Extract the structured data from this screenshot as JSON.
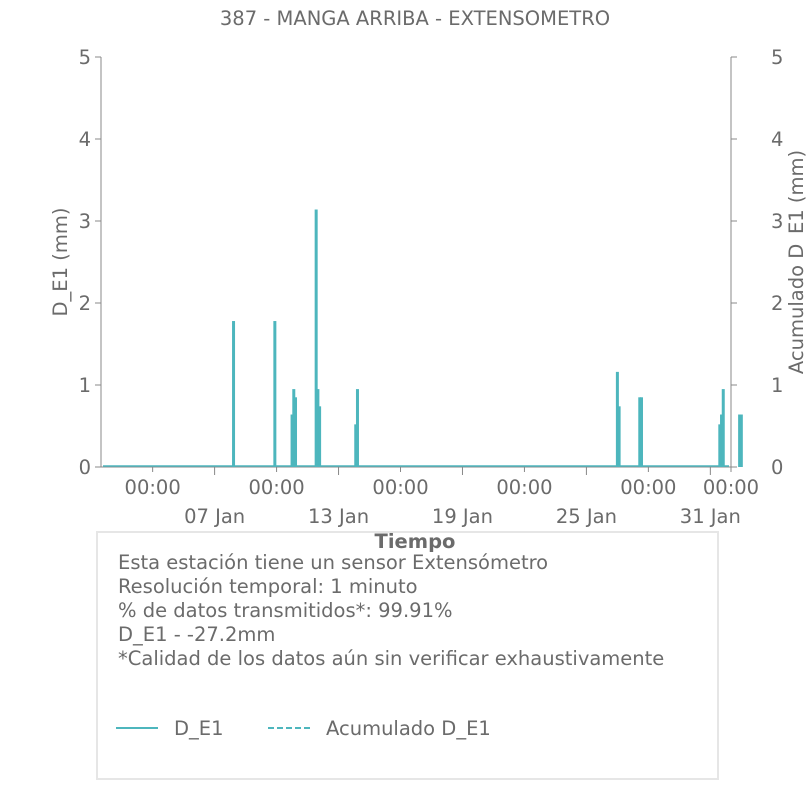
{
  "colors": {
    "series": "#4db6bd",
    "text": "#6b6b6b",
    "axis": "#888888",
    "box_border": "#e6e6e6"
  },
  "chart_data": {
    "type": "bar",
    "title": "387 - MANGA ARRIBA - EXTENSOMETRO",
    "xlabel": "Tiempo",
    "ylabel": "D_E1 (mm)",
    "y2label": "Acumulado D_E1 (mm)",
    "ylim": [
      0,
      5
    ],
    "y2lim": [
      0,
      5
    ],
    "yticks": [
      "0",
      "1",
      "2",
      "3",
      "4",
      "5"
    ],
    "y2ticks": [
      "0",
      "1",
      "2",
      "3",
      "4",
      "5"
    ],
    "xlim": [
      "2025-01-01T12:00",
      "2025-02-01T00:00"
    ],
    "x_major_ticks": [
      {
        "x": "2025-01-07T00:00",
        "label": "07 Jan"
      },
      {
        "x": "2025-01-13T00:00",
        "label": "13 Jan"
      },
      {
        "x": "2025-01-19T00:00",
        "label": "19 Jan"
      },
      {
        "x": "2025-01-25T00:00",
        "label": "25 Jan"
      },
      {
        "x": "2025-01-31T00:00",
        "label": "31 Jan"
      }
    ],
    "x_minor_ticks": [
      {
        "x": "2025-01-04T00:00",
        "label": "00:00"
      },
      {
        "x": "2025-01-10T00:00",
        "label": "00:00"
      },
      {
        "x": "2025-01-16T00:00",
        "label": "00:00"
      },
      {
        "x": "2025-01-22T00:00",
        "label": "00:00"
      },
      {
        "x": "2025-01-28T00:00",
        "label": "00:00"
      },
      {
        "x": "2025-02-01T00:00",
        "label": "00:00"
      }
    ],
    "grid": false,
    "legend": "bottom",
    "series": [
      {
        "name": "D_E1",
        "style": "solid",
        "points": [
          {
            "x": "2025-01-07T22:00",
            "y": 1.78
          },
          {
            "x": "2025-01-09T22:00",
            "y": 1.78
          },
          {
            "x": "2025-01-10T18:00",
            "y": 0.64
          },
          {
            "x": "2025-01-10T20:00",
            "y": 0.95
          },
          {
            "x": "2025-01-10T22:00",
            "y": 0.85
          },
          {
            "x": "2025-01-11T22:00",
            "y": 3.14
          },
          {
            "x": "2025-01-12T00:00",
            "y": 0.95
          },
          {
            "x": "2025-01-12T02:00",
            "y": 0.74
          },
          {
            "x": "2025-01-13T20:00",
            "y": 0.52
          },
          {
            "x": "2025-01-13T22:00",
            "y": 0.95
          },
          {
            "x": "2025-01-26T12:00",
            "y": 1.16
          },
          {
            "x": "2025-01-26T14:00",
            "y": 0.74
          },
          {
            "x": "2025-01-27T14:00",
            "y": 0.85
          },
          {
            "x": "2025-01-27T16:00",
            "y": 0.85
          },
          {
            "x": "2025-01-31T11:00",
            "y": 0.52
          },
          {
            "x": "2025-01-31T13:00",
            "y": 0.64
          },
          {
            "x": "2025-01-31T15:00",
            "y": 0.95
          },
          {
            "x": "2025-02-01T10:00",
            "y": 0.64
          },
          {
            "x": "2025-02-01T12:00",
            "y": 0.64
          }
        ]
      },
      {
        "name": "Acumulado D_E1",
        "style": "dashed",
        "points": []
      }
    ]
  },
  "info": {
    "lines": [
      "Esta estación tiene un sensor Extensómetro",
      "Resolución temporal: 1 minuto",
      "% de datos transmitidos*: 99.91%",
      "D_E1 - -27.2mm",
      "*Calidad de los datos aún sin verificar exhaustivamente"
    ]
  },
  "legend": {
    "items": [
      {
        "label": "D_E1",
        "style": "solid"
      },
      {
        "label": "Acumulado D_E1",
        "style": "dashed"
      }
    ]
  }
}
